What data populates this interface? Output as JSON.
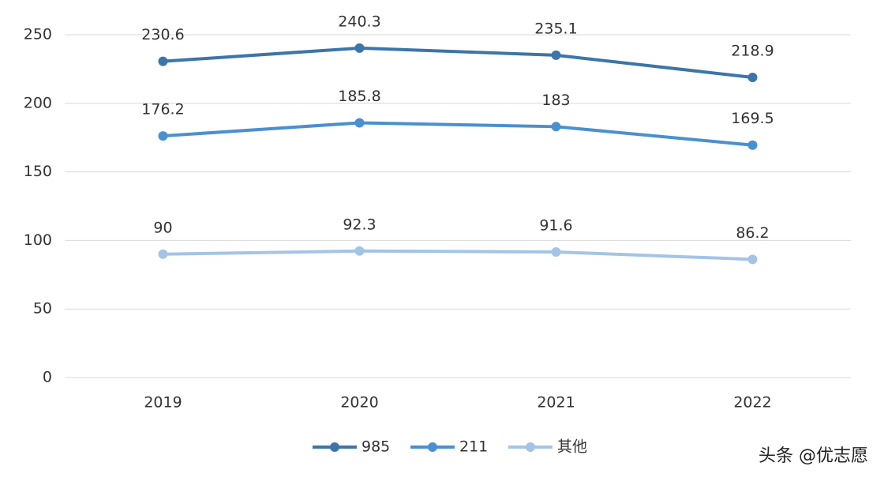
{
  "chart_data": {
    "type": "line",
    "categories": [
      "2019",
      "2020",
      "2021",
      "2022"
    ],
    "series": [
      {
        "name": "985",
        "color": "#3c75a8",
        "values": [
          230.6,
          240.3,
          235.1,
          218.9
        ]
      },
      {
        "name": "211",
        "color": "#4a90cf",
        "values": [
          176.2,
          185.8,
          183,
          169.5
        ]
      },
      {
        "name": "其他",
        "color": "#a4c4e6",
        "values": [
          90,
          92.3,
          91.6,
          86.2
        ]
      }
    ],
    "ylim": [
      0,
      250
    ],
    "yticks": [
      0,
      50,
      100,
      150,
      200,
      250
    ],
    "grid": true,
    "legend": "bottom",
    "credit": "头条 @优志愿"
  }
}
